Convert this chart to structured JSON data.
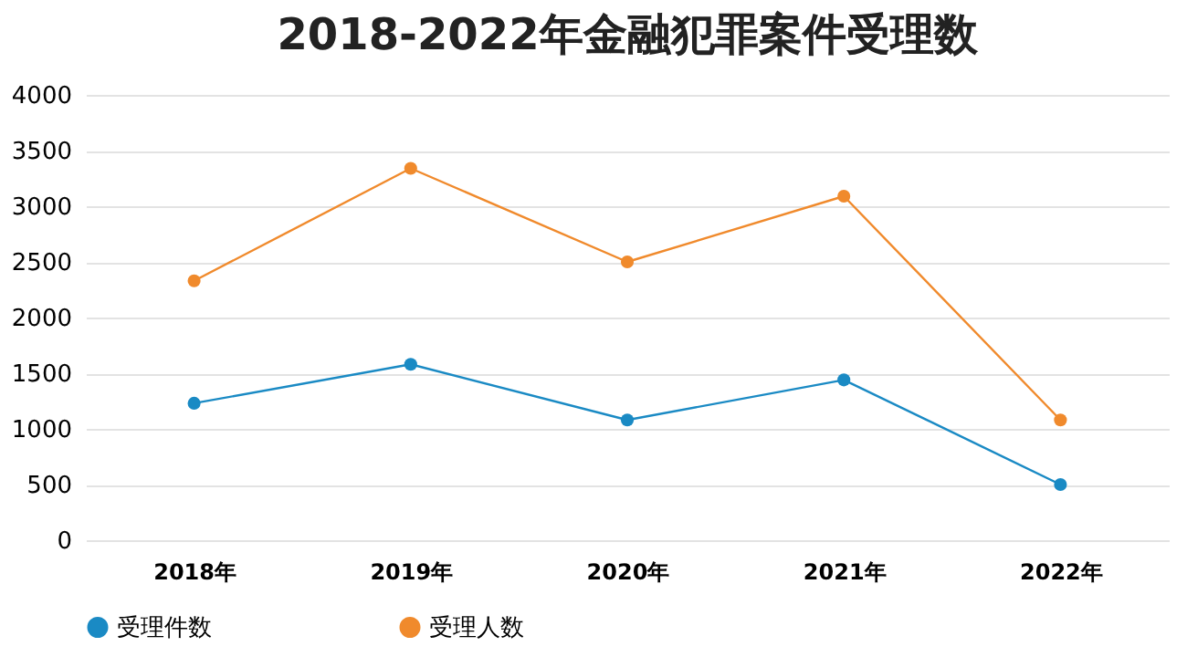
{
  "chart_data": {
    "type": "line",
    "title": "2018-2022年金融犯罪案件受理数",
    "categories": [
      "2018年",
      "2019年",
      "2020年",
      "2021年",
      "2022年"
    ],
    "series": [
      {
        "name": "受理件数",
        "color": "#1a8ac4",
        "values": [
          1230,
          1580,
          1080,
          1440,
          500
        ]
      },
      {
        "name": "受理人数",
        "color": "#f08a2c",
        "values": [
          2330,
          3340,
          2500,
          3090,
          1080
        ]
      }
    ],
    "ylim": [
      0,
      4000
    ],
    "yticks": [
      0,
      500,
      1000,
      1500,
      2000,
      2500,
      3000,
      3500,
      4000
    ],
    "grid": "y",
    "legend": "bottom",
    "marker": "circle",
    "line_style": "solid"
  }
}
